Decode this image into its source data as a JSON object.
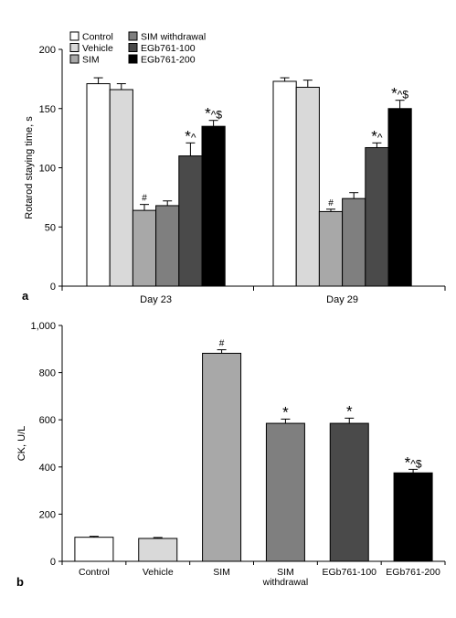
{
  "colors": {
    "Control": "#ffffff",
    "Vehicle": "#d9d9d9",
    "SIM": "#a8a8a8",
    "SIM withdrawal": "#7f7f7f",
    "EGb761-100": "#4a4a4a",
    "EGb761-200": "#000000"
  },
  "chart_data": [
    {
      "type": "bar",
      "panel_label": "a",
      "ylabel": "Rotarod staying time, s",
      "ylim": [
        0,
        200
      ],
      "yticks": [
        "0",
        "50",
        "100",
        "150",
        "200"
      ],
      "categories": [
        "Day 23",
        "Day 29"
      ],
      "legend": [
        "Control",
        "Vehicle",
        "SIM",
        "SIM withdrawal",
        "EGb761-100",
        "EGb761-200"
      ],
      "series": [
        {
          "name": "Control",
          "values": [
            171,
            173
          ],
          "errors": [
            5,
            3
          ],
          "marks": [
            "",
            ""
          ]
        },
        {
          "name": "Vehicle",
          "values": [
            166,
            168
          ],
          "errors": [
            5,
            6
          ],
          "marks": [
            "",
            ""
          ]
        },
        {
          "name": "SIM",
          "values": [
            64,
            63
          ],
          "errors": [
            5,
            2
          ],
          "marks": [
            "#",
            "#"
          ]
        },
        {
          "name": "SIM withdrawal",
          "values": [
            68,
            74
          ],
          "errors": [
            4,
            5
          ],
          "marks": [
            "",
            ""
          ]
        },
        {
          "name": "EGb761-100",
          "values": [
            110,
            117
          ],
          "errors": [
            11,
            4
          ],
          "marks": [
            "*^",
            "*^"
          ]
        },
        {
          "name": "EGb761-200",
          "values": [
            135,
            150
          ],
          "errors": [
            5,
            7
          ],
          "marks": [
            "*^$",
            "*^$"
          ]
        }
      ]
    },
    {
      "type": "bar",
      "panel_label": "b",
      "ylabel": "CK, U/L",
      "ylim": [
        0,
        1000
      ],
      "yticks": [
        "0",
        "200",
        "400",
        "600",
        "800",
        "1,000"
      ],
      "categories": [
        "Control",
        "Vehicle",
        "SIM",
        "SIM withdrawal",
        "EGb761-100",
        "EGb761-200"
      ],
      "category_labels": [
        [
          "Control"
        ],
        [
          "Vehicle"
        ],
        [
          "SIM"
        ],
        [
          "SIM",
          "withdrawal"
        ],
        [
          "EGb761-100"
        ],
        [
          "EGb761-200"
        ]
      ],
      "values": [
        102,
        97,
        882,
        585,
        585,
        375
      ],
      "errors": [
        4,
        4,
        15,
        18,
        22,
        15
      ],
      "marks": [
        "",
        "",
        "#",
        "*",
        "*",
        "*^$"
      ]
    }
  ]
}
